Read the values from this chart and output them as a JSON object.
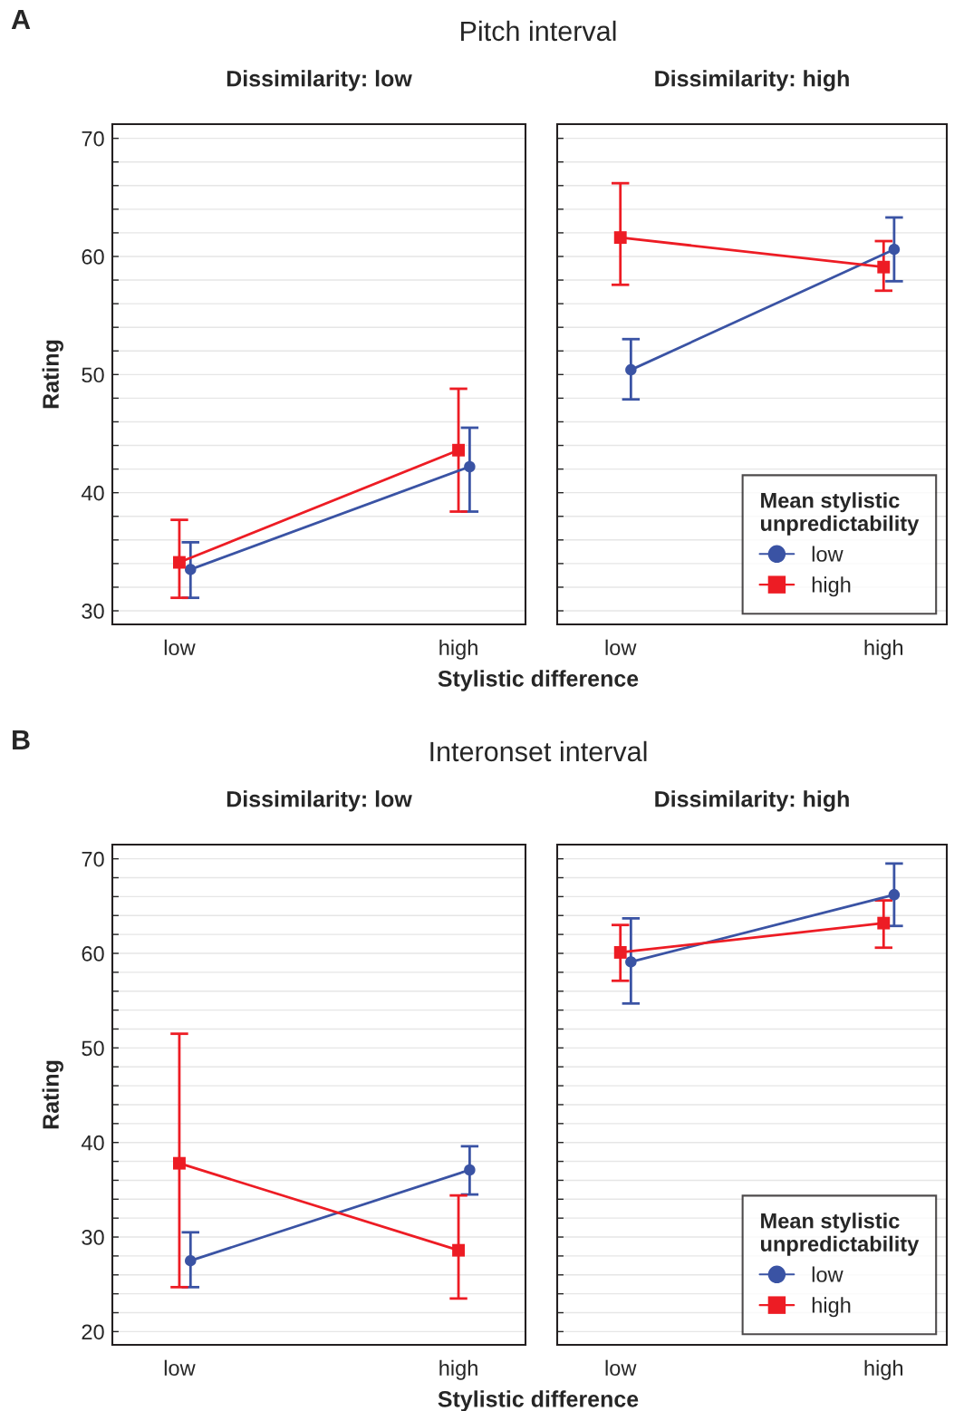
{
  "chart_data": [
    {
      "type": "line",
      "title": "Pitch interval",
      "subtitle": "Dissimilarity: low",
      "annotations": [
        "A"
      ],
      "xlabel": "Stylistic difference",
      "ylabel": "Rating",
      "categories": [
        "low",
        "high"
      ],
      "ylim": [
        28.85,
        71.2
      ],
      "yticks": [
        30,
        {
          "value": 32,
          "label": null
        },
        {
          "value": 34,
          "label": null
        },
        {
          "value": 36,
          "label": null
        },
        {
          "value": 38,
          "label": null
        },
        40,
        {
          "value": 42,
          "label": null
        },
        {
          "value": 44,
          "label": null
        },
        {
          "value": 46,
          "label": null
        },
        {
          "value": 48,
          "label": null
        },
        50,
        {
          "value": 52,
          "label": null
        },
        {
          "value": 54,
          "label": null
        },
        {
          "value": 56,
          "label": null
        },
        {
          "value": 58,
          "label": null
        },
        60,
        {
          "value": 62,
          "label": null
        },
        {
          "value": 64,
          "label": null
        },
        {
          "value": 66,
          "label": null
        },
        {
          "value": 68,
          "label": null
        },
        70
      ],
      "grid": "y",
      "series": [
        {
          "color": "#3a53a4",
          "marker": "circle",
          "values": [
            33.5,
            42.2
          ],
          "errors": [
            [
              31.1,
              35.8
            ],
            [
              38.4,
              45.5
            ]
          ]
        },
        {
          "color": "#ed1c24",
          "marker": "square",
          "values": [
            34.1,
            43.6
          ],
          "errors": [
            [
              31.1,
              37.7
            ],
            [
              38.4,
              48.8
            ]
          ]
        }
      ]
    },
    {
      "type": "line",
      "subtitle": "Dissimilarity: high",
      "categories": [
        "low",
        "high"
      ],
      "ylim": [
        28.85,
        71.2
      ],
      "yticks": [
        30,
        {
          "value": 32,
          "label": null
        },
        {
          "value": 34,
          "label": null
        },
        {
          "value": 36,
          "label": null
        },
        {
          "value": 38,
          "label": null
        },
        40,
        {
          "value": 42,
          "label": null
        },
        {
          "value": 44,
          "label": null
        },
        {
          "value": 46,
          "label": null
        },
        {
          "value": 48,
          "label": null
        },
        50,
        {
          "value": 52,
          "label": null
        },
        {
          "value": 54,
          "label": null
        },
        {
          "value": 56,
          "label": null
        },
        {
          "value": 58,
          "label": null
        },
        60,
        {
          "value": 62,
          "label": null
        },
        {
          "value": 64,
          "label": null
        },
        {
          "value": 66,
          "label": null
        },
        {
          "value": 68,
          "label": null
        },
        70
      ],
      "tick_labels": "x",
      "grid": "y",
      "legend": "bottom right",
      "legend_title": "Mean stylistic\nunpredictability",
      "series": [
        {
          "name": "low",
          "color": "#3a53a4",
          "marker": "circle",
          "values": [
            50.4,
            60.6
          ],
          "errors": [
            [
              47.9,
              53.0
            ],
            [
              57.9,
              63.3
            ]
          ]
        },
        {
          "name": "high",
          "color": "#ed1c24",
          "marker": "square",
          "values": [
            61.6,
            59.1
          ],
          "errors": [
            [
              57.6,
              66.2
            ],
            [
              57.1,
              61.3
            ]
          ]
        }
      ]
    },
    {
      "type": "line",
      "title": "Interonset interval",
      "subtitle": "Dissimilarity: low",
      "annotations": [
        "B"
      ],
      "xlabel": "Stylistic difference",
      "ylabel": "Rating",
      "categories": [
        "low",
        "high"
      ],
      "ylim": [
        18.6,
        71.5
      ],
      "yticks": [
        20,
        {
          "value": 22,
          "label": null
        },
        {
          "value": 24,
          "label": null
        },
        {
          "value": 26,
          "label": null
        },
        {
          "value": 28,
          "label": null
        },
        30,
        {
          "value": 32,
          "label": null
        },
        {
          "value": 34,
          "label": null
        },
        {
          "value": 36,
          "label": null
        },
        {
          "value": 38,
          "label": null
        },
        40,
        {
          "value": 42,
          "label": null
        },
        {
          "value": 44,
          "label": null
        },
        {
          "value": 46,
          "label": null
        },
        {
          "value": 48,
          "label": null
        },
        50,
        {
          "value": 52,
          "label": null
        },
        {
          "value": 54,
          "label": null
        },
        {
          "value": 56,
          "label": null
        },
        {
          "value": 58,
          "label": null
        },
        60,
        {
          "value": 62,
          "label": null
        },
        {
          "value": 64,
          "label": null
        },
        {
          "value": 66,
          "label": null
        },
        {
          "value": 68,
          "label": null
        },
        70
      ],
      "grid": "y",
      "series": [
        {
          "color": "#3a53a4",
          "marker": "circle",
          "values": [
            27.5,
            37.1
          ],
          "errors": [
            [
              24.7,
              30.5
            ],
            [
              34.5,
              39.6
            ]
          ]
        },
        {
          "color": "#ed1c24",
          "marker": "square",
          "values": [
            37.8,
            28.6
          ],
          "errors": [
            [
              24.7,
              51.5
            ],
            [
              23.5,
              34.4
            ]
          ]
        }
      ]
    },
    {
      "type": "line",
      "subtitle": "Dissimilarity: high",
      "categories": [
        "low",
        "high"
      ],
      "ylim": [
        18.6,
        71.5
      ],
      "yticks": [
        20,
        {
          "value": 22,
          "label": null
        },
        {
          "value": 24,
          "label": null
        },
        {
          "value": 26,
          "label": null
        },
        {
          "value": 28,
          "label": null
        },
        30,
        {
          "value": 32,
          "label": null
        },
        {
          "value": 34,
          "label": null
        },
        {
          "value": 36,
          "label": null
        },
        {
          "value": 38,
          "label": null
        },
        40,
        {
          "value": 42,
          "label": null
        },
        {
          "value": 44,
          "label": null
        },
        {
          "value": 46,
          "label": null
        },
        {
          "value": 48,
          "label": null
        },
        50,
        {
          "value": 52,
          "label": null
        },
        {
          "value": 54,
          "label": null
        },
        {
          "value": 56,
          "label": null
        },
        {
          "value": 58,
          "label": null
        },
        60,
        {
          "value": 62,
          "label": null
        },
        {
          "value": 64,
          "label": null
        },
        {
          "value": 66,
          "label": null
        },
        {
          "value": 68,
          "label": null
        },
        70
      ],
      "tick_labels": "x",
      "grid": "y",
      "legend": "bottom right",
      "legend_title": "Mean stylistic\nunpredictability",
      "series": [
        {
          "name": "low",
          "color": "#3a53a4",
          "marker": "circle",
          "values": [
            59.1,
            66.2
          ],
          "errors": [
            [
              54.7,
              63.7
            ],
            [
              62.9,
              69.5
            ]
          ]
        },
        {
          "name": "high",
          "color": "#ed1c24",
          "marker": "square",
          "values": [
            60.1,
            63.2
          ],
          "errors": [
            [
              57.1,
              63.0
            ],
            [
              60.6,
              65.6
            ]
          ]
        }
      ]
    }
  ]
}
